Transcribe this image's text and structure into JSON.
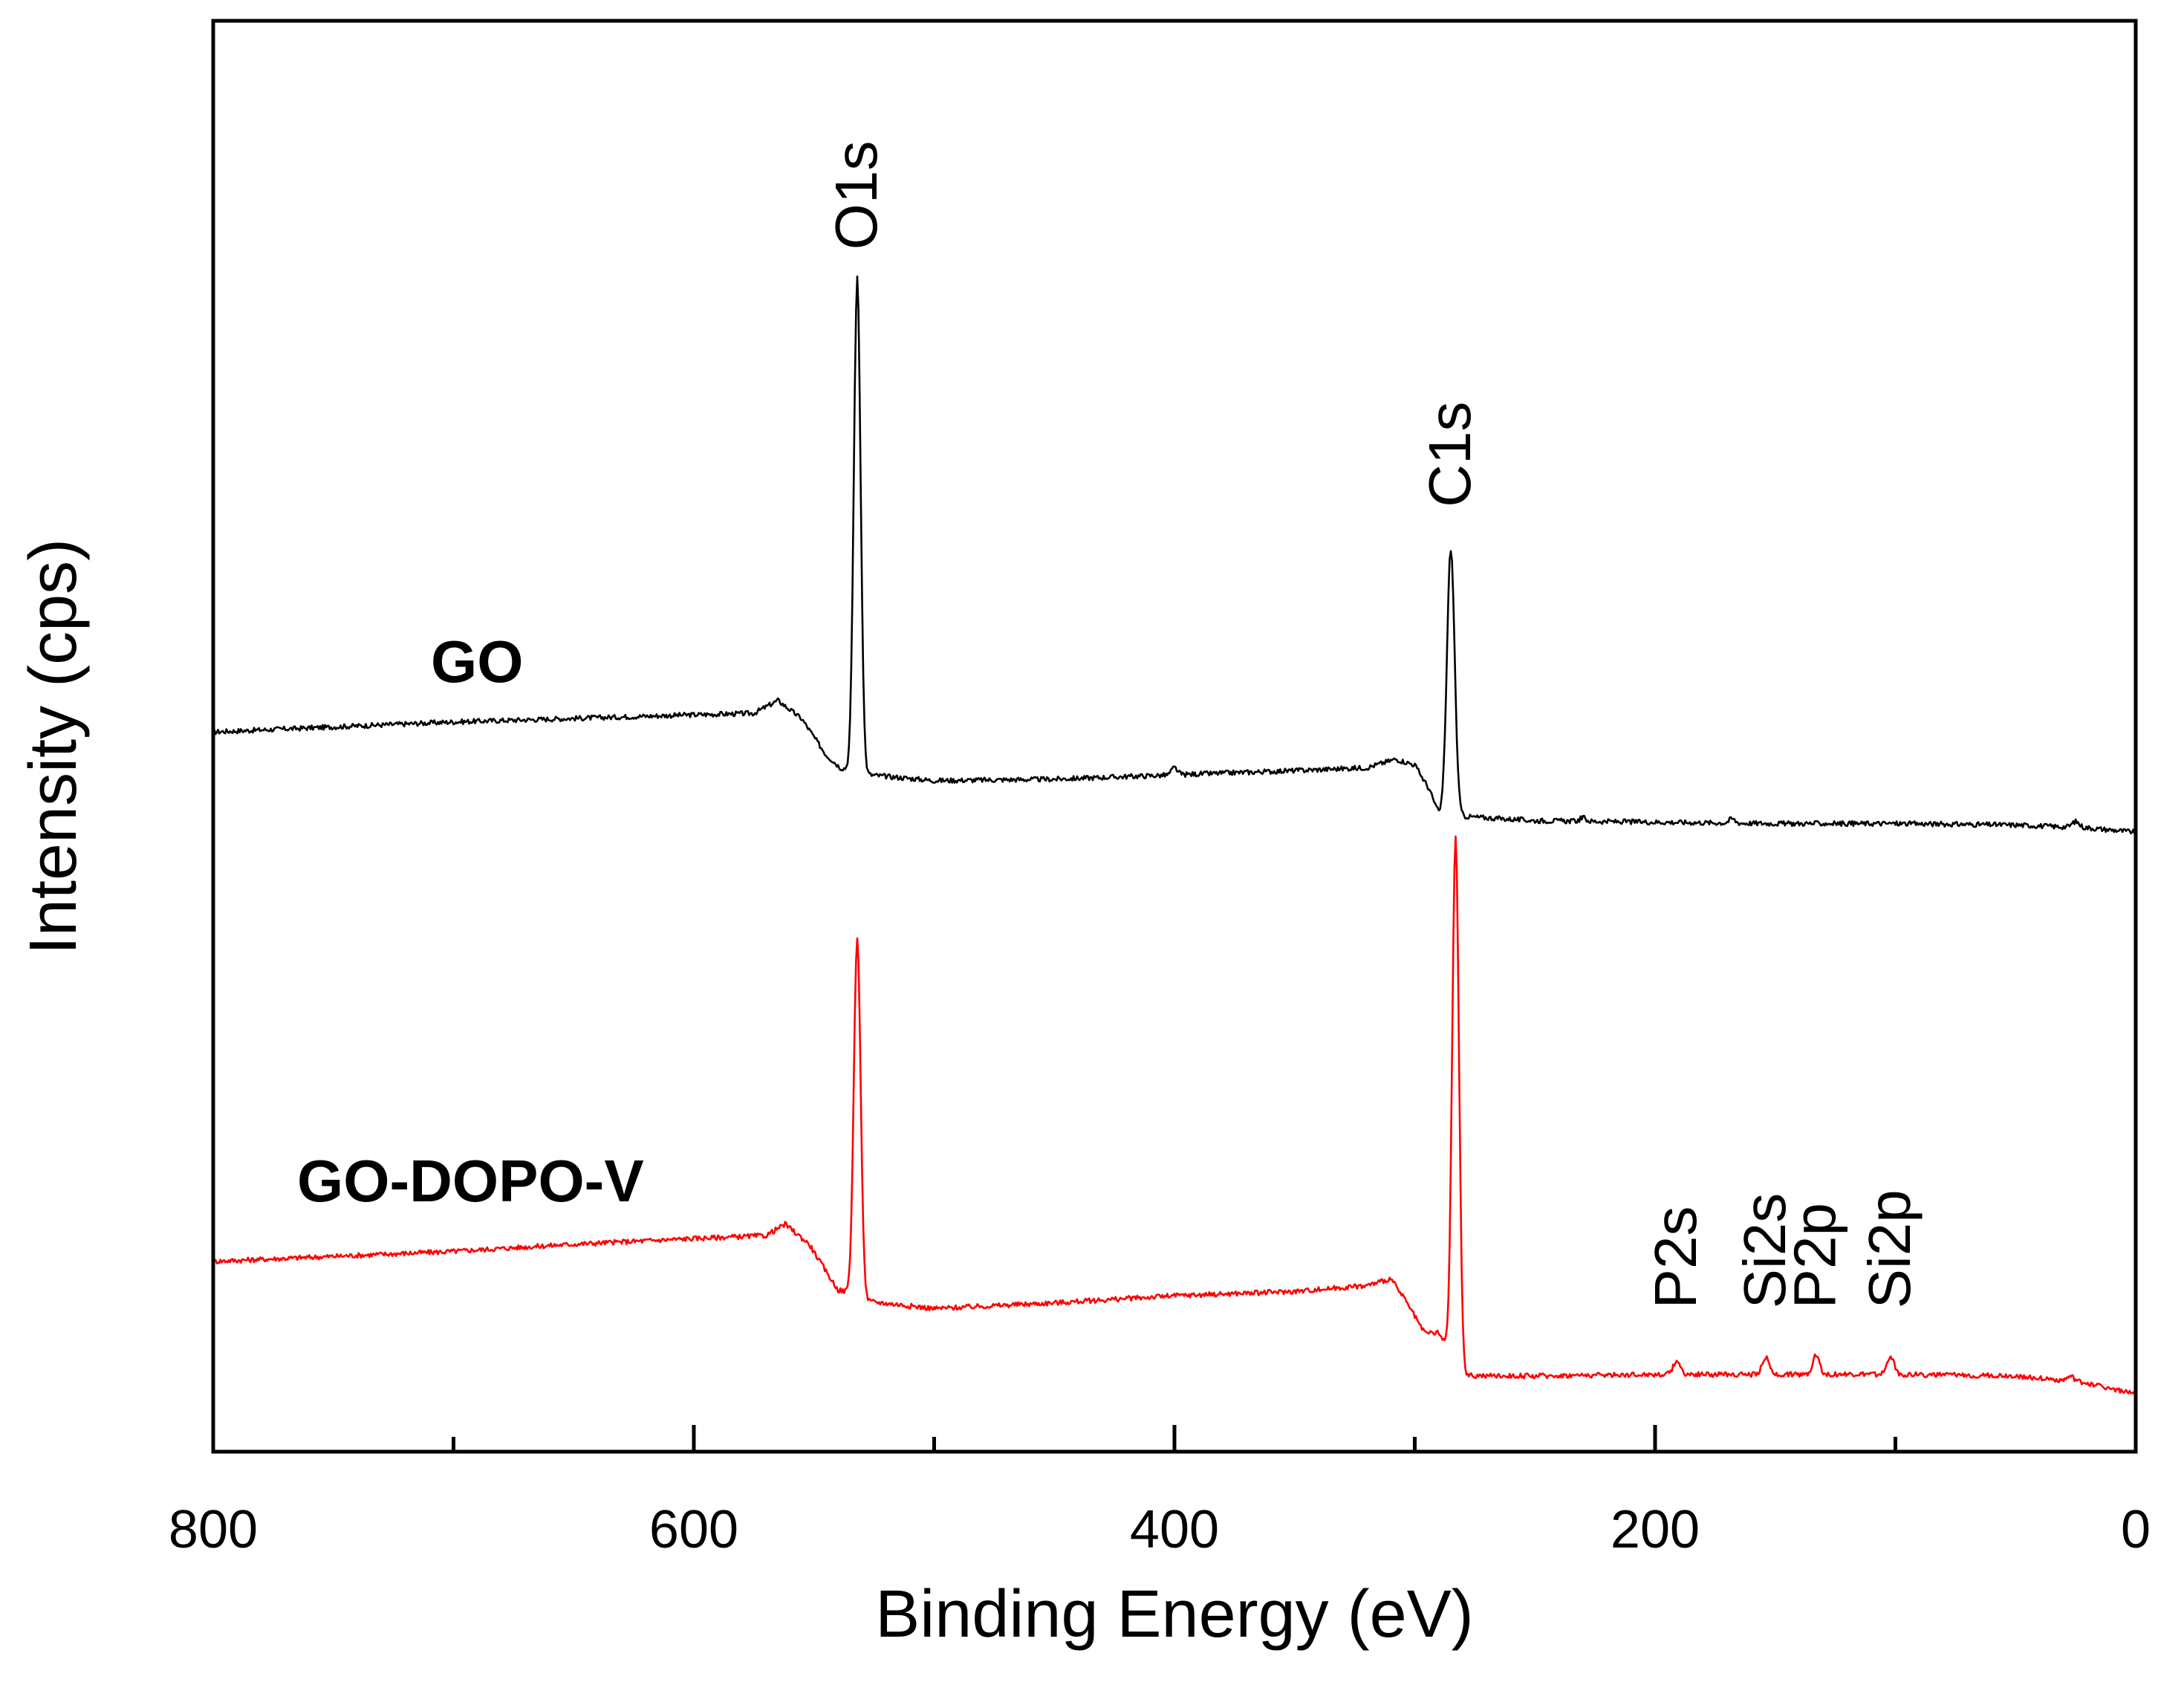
{
  "chart_data": {
    "type": "line",
    "title": "",
    "xlabel": "Binding Energy (eV)",
    "ylabel": "Intensity (cps)",
    "xlim": [
      800,
      0
    ],
    "ylim": [
      0,
      100
    ],
    "x_ticks": [
      800,
      600,
      400,
      200,
      0
    ],
    "x_tick_labels": [
      "800",
      "600",
      "400",
      "200",
      "0"
    ],
    "grid": false,
    "series": [
      {
        "name": "GO",
        "color": "#000000",
        "label": "GO",
        "baseline": [
          [
            800,
            50.3
          ],
          [
            700,
            51.0
          ],
          [
            600,
            51.5
          ],
          [
            575,
            51.6
          ],
          [
            565,
            52.5
          ],
          [
            555,
            51.2
          ],
          [
            545,
            48.7
          ],
          [
            539,
            47.8
          ],
          [
            534,
            47.6
          ],
          [
            527,
            47.3
          ],
          [
            500,
            46.9
          ],
          [
            450,
            47.0
          ],
          [
            400,
            47.3
          ],
          [
            350,
            47.6
          ],
          [
            320,
            47.8
          ],
          [
            308,
            48.4
          ],
          [
            300,
            48.0
          ],
          [
            294,
            46.3
          ],
          [
            290,
            44.6
          ],
          [
            280,
            44.4
          ],
          [
            250,
            44.1
          ],
          [
            200,
            44.0
          ],
          [
            150,
            43.9
          ],
          [
            100,
            43.9
          ],
          [
            50,
            43.8
          ],
          [
            20,
            43.6
          ],
          [
            0,
            43.3
          ]
        ],
        "peaks": [
          {
            "pos": 532,
            "height": 34.5,
            "width": 1.4
          },
          {
            "pos": 285,
            "height": 18.6,
            "width": 1.6
          },
          {
            "pos": 400,
            "height": 0.5,
            "width": 1.2
          },
          {
            "pos": 230,
            "height": 0.25,
            "width": 1.2
          },
          {
            "pos": 168,
            "height": 0.3,
            "width": 1.2
          },
          {
            "pos": 25,
            "height": 0.4,
            "width": 1.5
          }
        ]
      },
      {
        "name": "GO-DOPO-V",
        "color": "#ff0000",
        "label": "GO-DOPO-V",
        "baseline": [
          [
            800,
            13.3
          ],
          [
            700,
            14.0
          ],
          [
            650,
            14.5
          ],
          [
            600,
            14.9
          ],
          [
            570,
            15.1
          ],
          [
            562,
            15.9
          ],
          [
            552,
            14.5
          ],
          [
            545,
            12.6
          ],
          [
            540,
            11.3
          ],
          [
            534,
            11.1
          ],
          [
            527,
            10.5
          ],
          [
            500,
            10.0
          ],
          [
            450,
            10.4
          ],
          [
            400,
            10.9
          ],
          [
            350,
            11.2
          ],
          [
            320,
            11.6
          ],
          [
            310,
            12.1
          ],
          [
            304,
            10.6
          ],
          [
            296,
            8.3
          ],
          [
            290,
            8.3
          ],
          [
            280,
            5.3
          ],
          [
            250,
            5.3
          ],
          [
            200,
            5.4
          ],
          [
            150,
            5.4
          ],
          [
            100,
            5.4
          ],
          [
            50,
            5.3
          ],
          [
            20,
            4.8
          ],
          [
            0,
            4.0
          ]
        ],
        "peaks": [
          {
            "pos": 532,
            "height": 25.0,
            "width": 1.4
          },
          {
            "pos": 283,
            "height": 36.8,
            "width": 1.4
          },
          {
            "pos": 191,
            "height": 1.0,
            "width": 1.4
          },
          {
            "pos": 154,
            "height": 1.2,
            "width": 1.4
          },
          {
            "pos": 133,
            "height": 1.4,
            "width": 1.4
          },
          {
            "pos": 102,
            "height": 1.3,
            "width": 1.4
          },
          {
            "pos": 27,
            "height": 0.3,
            "width": 1.5
          }
        ]
      }
    ],
    "annotations": [
      {
        "text": "O1s",
        "x": 532,
        "y": 84,
        "rotation": -90
      },
      {
        "text": "C1s",
        "x": 285,
        "y": 66,
        "rotation": -90
      },
      {
        "text": "P2s",
        "x": 191,
        "y": 10,
        "rotation": -90
      },
      {
        "text": "Si2s",
        "x": 154,
        "y": 10,
        "rotation": -90
      },
      {
        "text": "P2p",
        "x": 133,
        "y": 10,
        "rotation": -90
      },
      {
        "text": "Si2p",
        "x": 102,
        "y": 10,
        "rotation": -90
      }
    ]
  }
}
